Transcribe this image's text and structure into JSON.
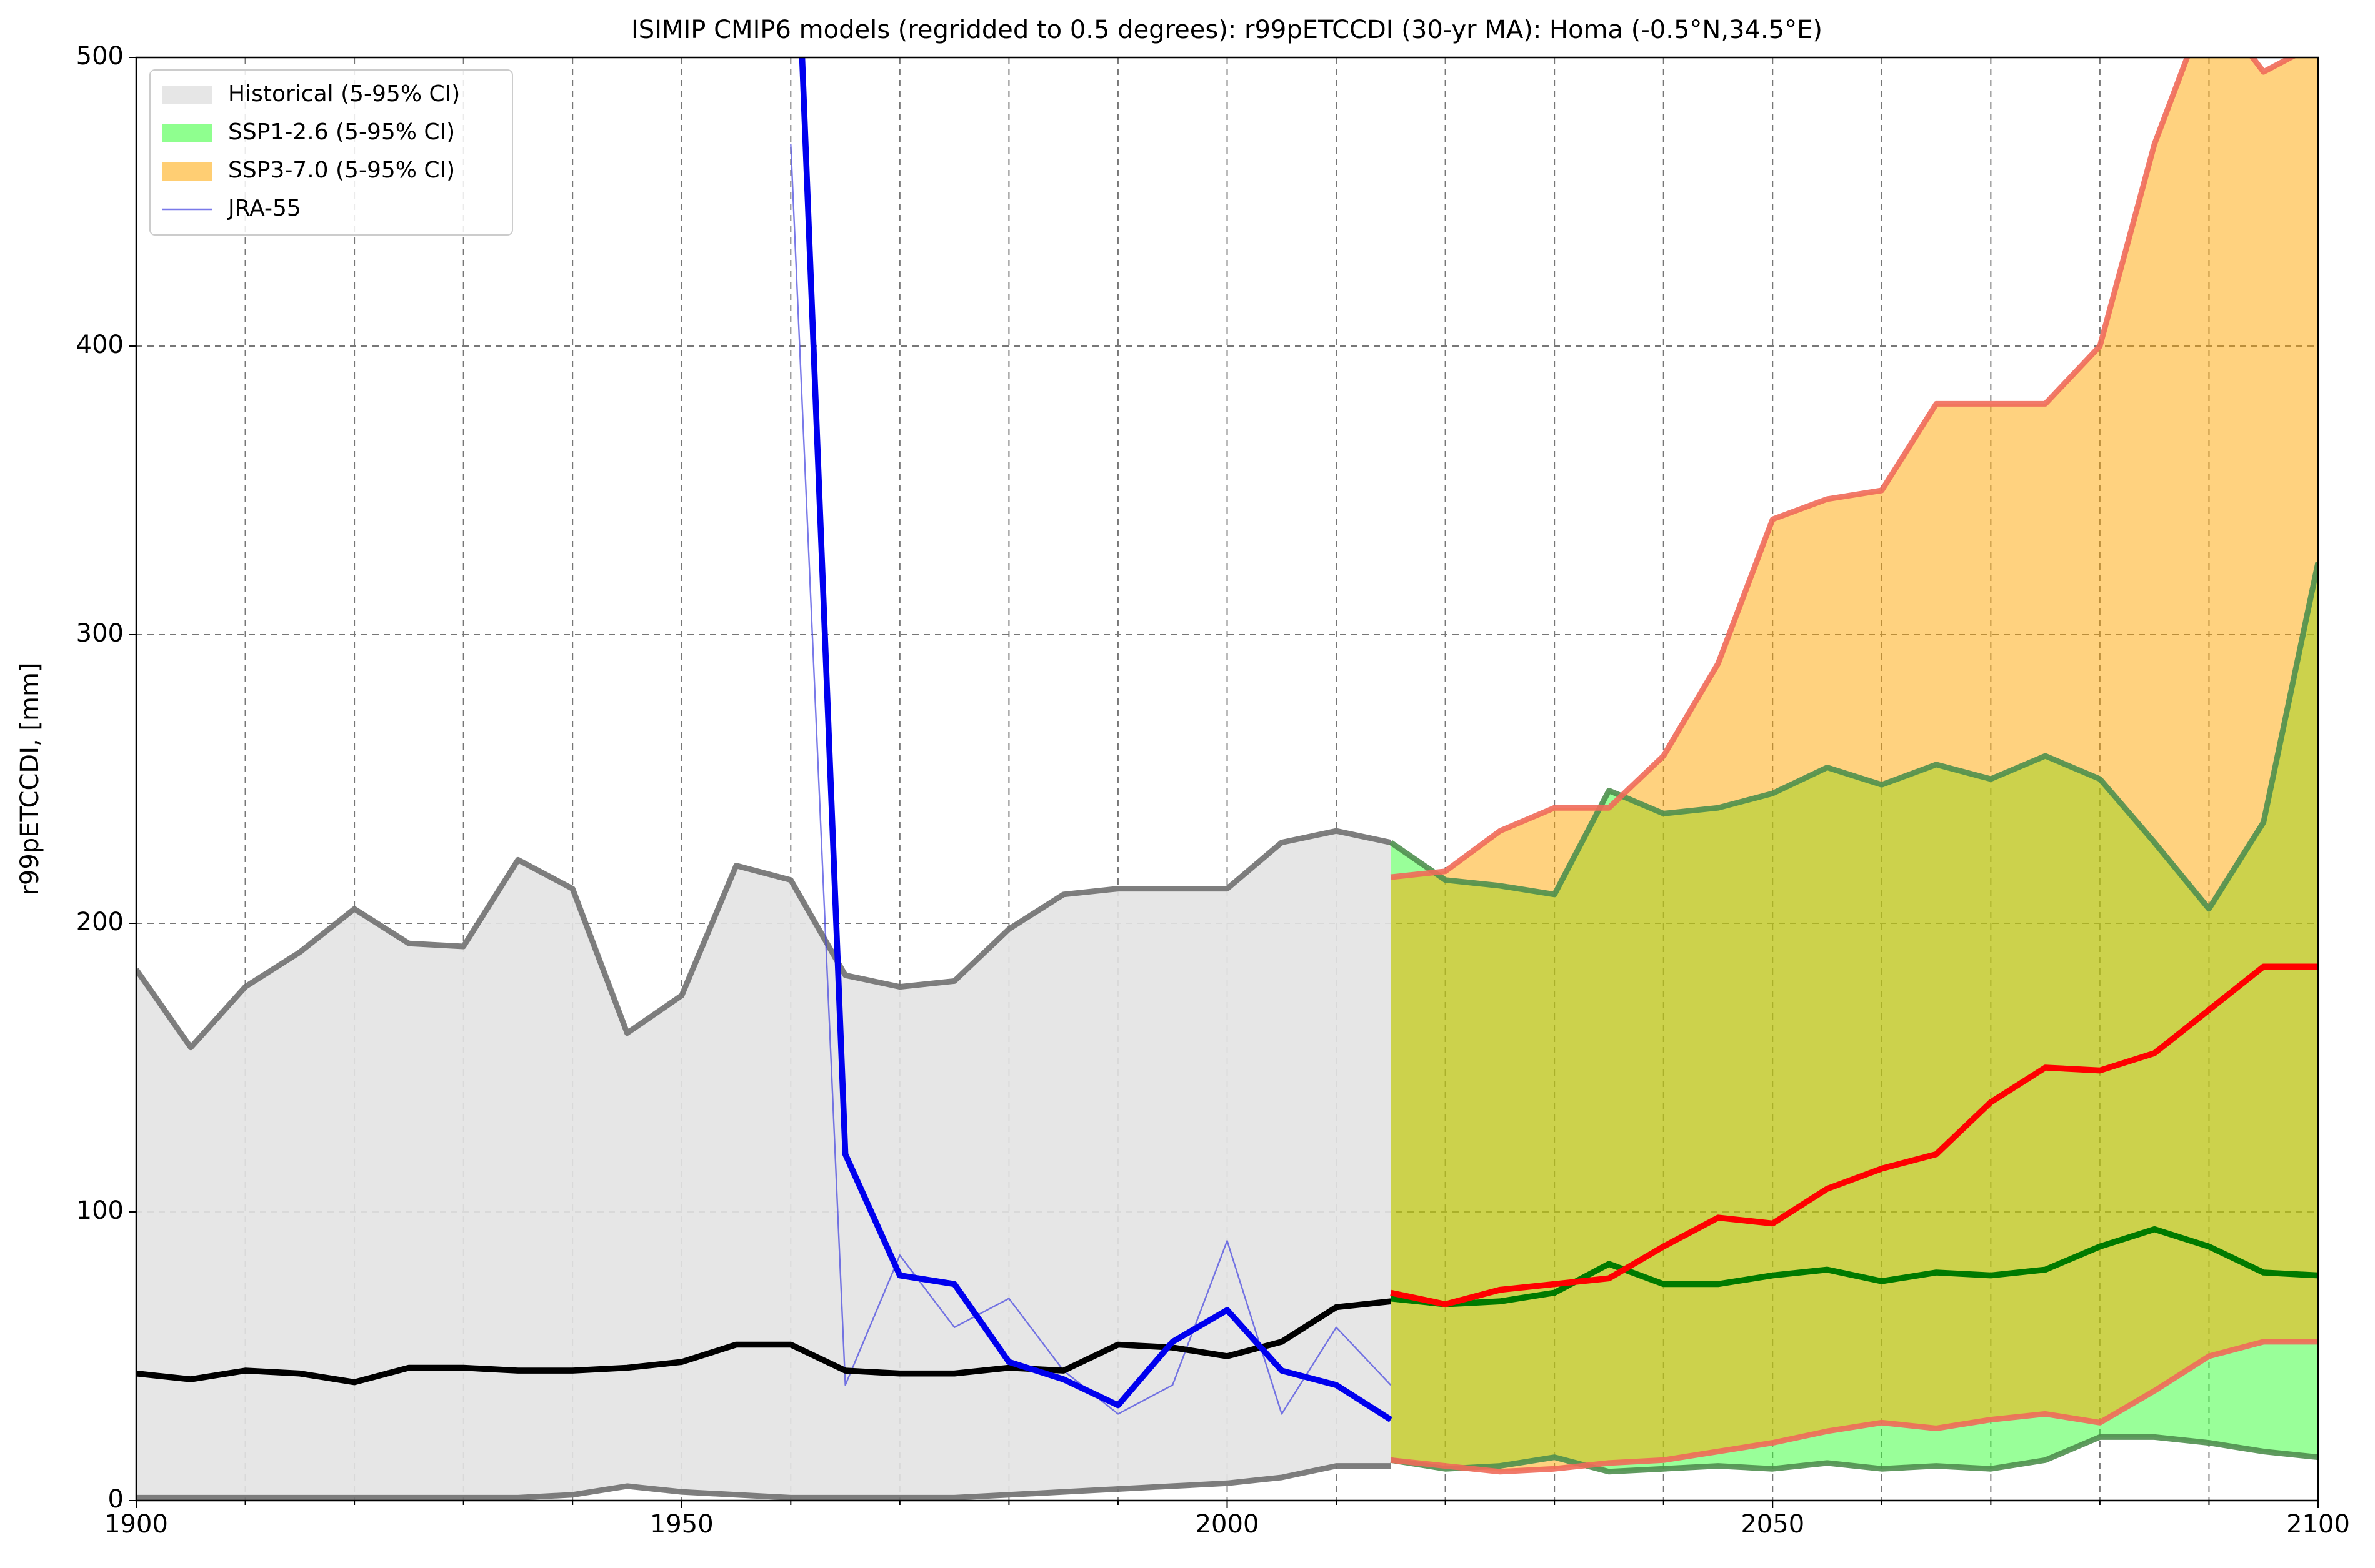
{
  "chart_data": {
    "type": "line",
    "title": "ISIMIP CMIP6 models (regridded to 0.5 degrees): r99pETCCDI (30-yr MA): Homa (-0.5°N,34.5°E)",
    "y_label": "r99pETCCDI, [mm]",
    "x": [
      1900,
      1905,
      1910,
      1915,
      1920,
      1925,
      1930,
      1935,
      1940,
      1945,
      1950,
      1955,
      1960,
      1965,
      1970,
      1975,
      1980,
      1985,
      1990,
      1995,
      2000,
      2005,
      2010,
      2015,
      2020,
      2025,
      2030,
      2035,
      2040,
      2045,
      2050,
      2055,
      2060,
      2065,
      2070,
      2075,
      2080,
      2085,
      2090,
      2095,
      2100
    ],
    "xlim": [
      1900,
      2100
    ],
    "xticks": [
      1900,
      1950,
      2000,
      2050,
      2100
    ],
    "xminorticks": [
      1910,
      1920,
      1930,
      1940,
      1960,
      1970,
      1980,
      1990,
      2010,
      2020,
      2030,
      2040,
      2060,
      2070,
      2080,
      2090
    ],
    "ylim": [
      0,
      500
    ],
    "yticks": [
      0,
      100,
      200,
      300,
      400,
      500
    ],
    "grid": true,
    "legend": "upper left",
    "series": [
      {
        "kind": "band",
        "name": "Historical (5-95% CI)",
        "color": "#e3e3e3",
        "edge_color": "#707070",
        "upper": [
          184,
          157,
          178,
          190,
          205,
          193,
          192,
          222,
          212,
          162,
          175,
          220,
          215,
          182,
          178,
          180,
          198,
          210,
          212,
          212,
          212,
          228,
          232,
          228,
          null,
          null,
          null,
          null,
          null,
          null,
          null,
          null,
          null,
          null,
          null,
          null,
          null,
          null,
          null,
          null,
          null
        ],
        "lower": [
          1,
          1,
          1,
          1,
          1,
          1,
          1,
          1,
          2,
          5,
          3,
          2,
          1,
          1,
          1,
          1,
          2,
          3,
          4,
          5,
          6,
          8,
          12,
          12,
          null,
          null,
          null,
          null,
          null,
          null,
          null,
          null,
          null,
          null,
          null,
          null,
          null,
          null,
          null,
          null,
          null
        ]
      },
      {
        "kind": "band",
        "name": "SSP1-2.6 (5-95% CI)",
        "color": "#33ff33",
        "edge_color": "#4f8f4f",
        "upper": [
          null,
          null,
          null,
          null,
          null,
          null,
          null,
          null,
          null,
          null,
          null,
          null,
          null,
          null,
          null,
          null,
          null,
          null,
          null,
          null,
          null,
          null,
          null,
          228,
          215,
          213,
          210,
          246,
          238,
          240,
          245,
          254,
          248,
          255,
          250,
          258,
          250,
          228,
          205,
          235,
          325
        ],
        "lower": [
          null,
          null,
          null,
          null,
          null,
          null,
          null,
          null,
          null,
          null,
          null,
          null,
          null,
          null,
          null,
          null,
          null,
          null,
          null,
          null,
          null,
          null,
          null,
          14,
          11,
          12,
          15,
          10,
          11,
          12,
          11,
          13,
          11,
          12,
          11,
          14,
          22,
          22,
          20,
          17,
          15
        ]
      },
      {
        "kind": "band",
        "name": "SSP3-7.0 (5-95% CI)",
        "color": "#ffa500",
        "edge_color": "#f06a5a",
        "upper": [
          null,
          null,
          null,
          null,
          null,
          null,
          null,
          null,
          null,
          null,
          null,
          null,
          null,
          null,
          null,
          null,
          null,
          null,
          null,
          null,
          null,
          null,
          null,
          216,
          218,
          232,
          240,
          240,
          258,
          290,
          340,
          347,
          350,
          380,
          380,
          380,
          400,
          470,
          520,
          495,
          505
        ],
        "lower": [
          null,
          null,
          null,
          null,
          null,
          null,
          null,
          null,
          null,
          null,
          null,
          null,
          null,
          null,
          null,
          null,
          null,
          null,
          null,
          null,
          null,
          null,
          null,
          14,
          12,
          10,
          11,
          13,
          14,
          17,
          20,
          24,
          27,
          25,
          28,
          30,
          27,
          38,
          50,
          55,
          55
        ]
      },
      {
        "kind": "line",
        "name": "JRA-55",
        "color": "#4040e0",
        "width": 1,
        "values": [
          null,
          null,
          null,
          null,
          null,
          null,
          null,
          null,
          null,
          null,
          null,
          null,
          470,
          40,
          85,
          60,
          70,
          45,
          30,
          40,
          90,
          30,
          60,
          40,
          null,
          null,
          null,
          null,
          null,
          null,
          null,
          null,
          null,
          null,
          null,
          null,
          null,
          null,
          null,
          null,
          null
        ]
      },
      {
        "kind": "line",
        "color": "#000000",
        "width": 4,
        "values": [
          44,
          42,
          45,
          44,
          41,
          46,
          46,
          45,
          45,
          46,
          48,
          54,
          54,
          45,
          44,
          44,
          46,
          45,
          54,
          53,
          50,
          55,
          67,
          69,
          null,
          null,
          null,
          null,
          null,
          null,
          null,
          null,
          null,
          null,
          null,
          null,
          null,
          null,
          null,
          null,
          null
        ]
      },
      {
        "kind": "line",
        "color": "#007a00",
        "width": 4,
        "values": [
          null,
          null,
          null,
          null,
          null,
          null,
          null,
          null,
          null,
          null,
          null,
          null,
          null,
          null,
          null,
          null,
          null,
          null,
          null,
          null,
          null,
          null,
          null,
          70,
          68,
          69,
          72,
          82,
          75,
          75,
          78,
          80,
          76,
          79,
          78,
          80,
          88,
          94,
          88,
          79,
          78
        ]
      },
      {
        "kind": "line",
        "color": "#ff0000",
        "width": 4,
        "values": [
          null,
          null,
          null,
          null,
          null,
          null,
          null,
          null,
          null,
          null,
          null,
          null,
          null,
          null,
          null,
          null,
          null,
          null,
          null,
          null,
          null,
          null,
          null,
          72,
          68,
          73,
          75,
          77,
          88,
          98,
          96,
          108,
          115,
          120,
          138,
          150,
          149,
          155,
          170,
          185,
          185
        ]
      },
      {
        "kind": "line",
        "color": "#0000ee",
        "width": 4,
        "values": [
          null,
          null,
          null,
          null,
          null,
          null,
          null,
          null,
          null,
          null,
          null,
          null,
          600,
          120,
          78,
          75,
          48,
          42,
          33,
          55,
          66,
          45,
          40,
          28,
          null,
          null,
          null,
          null,
          null,
          null,
          null,
          null,
          null,
          null,
          null,
          null,
          null,
          null,
          null,
          null,
          null
        ]
      }
    ]
  }
}
